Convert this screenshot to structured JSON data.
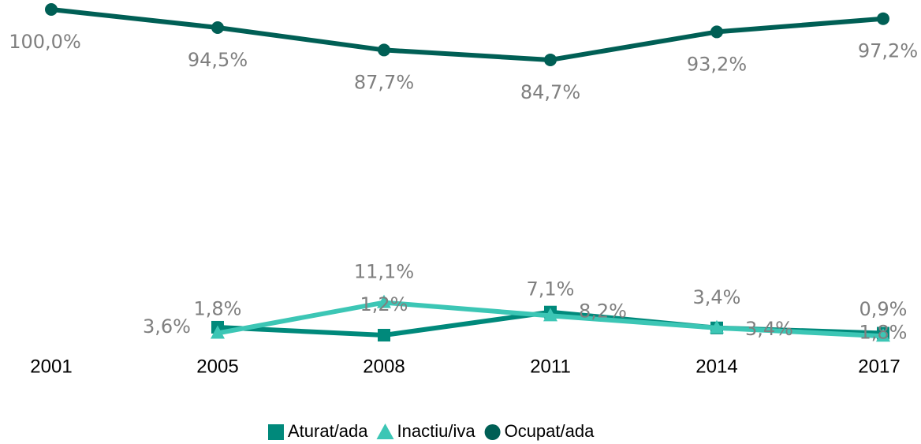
{
  "chart_data": {
    "type": "line",
    "categories": [
      "2001",
      "2005",
      "2008",
      "2011",
      "2014",
      "2017"
    ],
    "series": [
      {
        "name": "Aturat/ada",
        "color": "#00897b",
        "marker": "square",
        "values": [
          null,
          3.6,
          1.2,
          8.2,
          3.4,
          1.8
        ],
        "value_labels": [
          null,
          "3,6%",
          "1,2%",
          "8,2%",
          "3,4%",
          "1,8%"
        ]
      },
      {
        "name": "Inactiu/iva",
        "color": "#3cc6b5",
        "marker": "triangle",
        "values": [
          null,
          1.8,
          11.1,
          7.1,
          3.4,
          0.9
        ],
        "value_labels": [
          null,
          "1,8%",
          "11,1%",
          "7,1%",
          "3,4%",
          "0,9%"
        ]
      },
      {
        "name": "Ocupat/ada",
        "color": "#005f55",
        "marker": "circle",
        "values": [
          100.0,
          94.5,
          87.7,
          84.7,
          93.2,
          97.2
        ],
        "value_labels": [
          "100,0%",
          "94,5%",
          "87,7%",
          "84,7%",
          "93,2%",
          "97,2%"
        ]
      }
    ],
    "ylim": [
      0,
      100
    ]
  }
}
